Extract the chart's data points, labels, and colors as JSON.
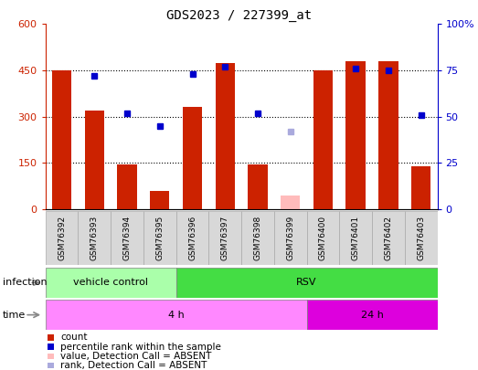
{
  "title": "GDS2023 / 227399_at",
  "samples": [
    "GSM76392",
    "GSM76393",
    "GSM76394",
    "GSM76395",
    "GSM76396",
    "GSM76397",
    "GSM76398",
    "GSM76399",
    "GSM76400",
    "GSM76401",
    "GSM76402",
    "GSM76403"
  ],
  "counts": [
    450,
    320,
    145,
    60,
    330,
    475,
    145,
    null,
    450,
    480,
    480,
    140
  ],
  "counts_absent": [
    null,
    null,
    null,
    null,
    null,
    null,
    null,
    45,
    null,
    null,
    null,
    null
  ],
  "ranks_pct": [
    null,
    72,
    52,
    45,
    73,
    77,
    52,
    null,
    null,
    76,
    75,
    51
  ],
  "ranks_pct_absent": [
    null,
    null,
    null,
    null,
    null,
    null,
    null,
    42,
    null,
    null,
    null,
    null
  ],
  "infection_groups": [
    {
      "label": "vehicle control",
      "start": 0,
      "end": 4,
      "color": "#aaffaa"
    },
    {
      "label": "RSV",
      "start": 4,
      "end": 12,
      "color": "#44dd44"
    }
  ],
  "time_groups": [
    {
      "label": "4 h",
      "start": 0,
      "end": 8,
      "color": "#ff88ff"
    },
    {
      "label": "24 h",
      "start": 8,
      "end": 12,
      "color": "#dd00dd"
    }
  ],
  "left_ylim": [
    0,
    600
  ],
  "right_ylim": [
    0,
    100
  ],
  "left_yticks": [
    0,
    150,
    300,
    450,
    600
  ],
  "right_yticks": [
    0,
    25,
    50,
    75,
    100
  ],
  "right_yticklabels": [
    "0",
    "25",
    "50",
    "75",
    "100%"
  ],
  "bar_color": "#cc2200",
  "bar_absent_color": "#ffbbbb",
  "rank_color": "#0000cc",
  "rank_absent_color": "#aaaadd",
  "grid_dotted_at": [
    150,
    300,
    450
  ]
}
